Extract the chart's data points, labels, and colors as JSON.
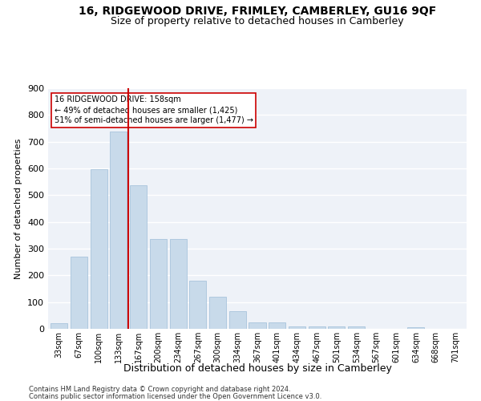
{
  "title1": "16, RIDGEWOOD DRIVE, FRIMLEY, CAMBERLEY, GU16 9QF",
  "title2": "Size of property relative to detached houses in Camberley",
  "xlabel": "Distribution of detached houses by size in Camberley",
  "ylabel": "Number of detached properties",
  "categories": [
    "33sqm",
    "67sqm",
    "100sqm",
    "133sqm",
    "167sqm",
    "200sqm",
    "234sqm",
    "267sqm",
    "300sqm",
    "334sqm",
    "367sqm",
    "401sqm",
    "434sqm",
    "467sqm",
    "501sqm",
    "534sqm",
    "567sqm",
    "601sqm",
    "634sqm",
    "668sqm",
    "701sqm"
  ],
  "values": [
    22,
    270,
    598,
    738,
    538,
    335,
    335,
    180,
    120,
    65,
    25,
    25,
    10,
    10,
    8,
    8,
    0,
    0,
    5,
    0,
    0
  ],
  "bar_color": "#c8daea",
  "bar_edge_color": "#a8c4dc",
  "vline_x_index": 3.5,
  "vline_color": "#cc0000",
  "annotation_text": "16 RIDGEWOOD DRIVE: 158sqm\n← 49% of detached houses are smaller (1,425)\n51% of semi-detached houses are larger (1,477) →",
  "annotation_box_color": "#ffffff",
  "annotation_box_edge": "#cc0000",
  "footer1": "Contains HM Land Registry data © Crown copyright and database right 2024.",
  "footer2": "Contains public sector information licensed under the Open Government Licence v3.0.",
  "ylim": [
    0,
    900
  ],
  "yticks": [
    0,
    100,
    200,
    300,
    400,
    500,
    600,
    700,
    800,
    900
  ],
  "background_color": "#eef2f8",
  "grid_color": "#ffffff",
  "title1_fontsize": 10,
  "title2_fontsize": 9,
  "ylabel_fontsize": 8,
  "xlabel_fontsize": 9,
  "tick_fontsize": 7,
  "footer_fontsize": 6
}
